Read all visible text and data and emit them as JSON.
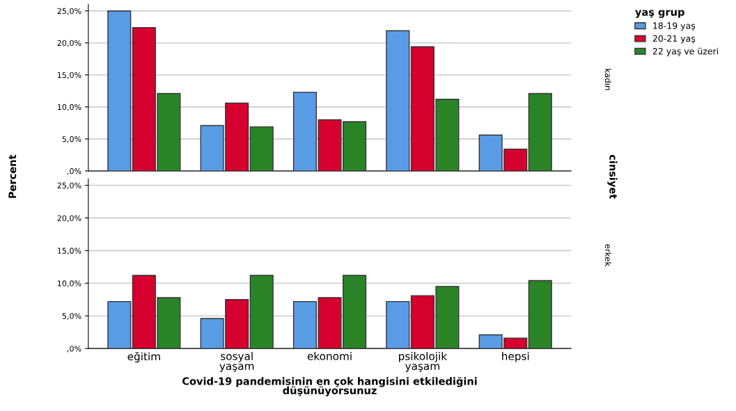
{
  "chart_data": [
    {
      "type": "bar",
      "ylabel": "Percent",
      "legend_title": "yaş grup",
      "legend": "right",
      "grid": "y",
      "tick_labels": "y",
      "categories": [
        null,
        null,
        null,
        null,
        null
      ],
      "series": [
        {
          "name": "18-19 yaş",
          "color": "#5a9be6",
          "values": [
            25.0,
            7.1,
            12.3,
            21.9,
            5.6
          ]
        },
        {
          "name": "20-21 yaş",
          "color": "#d6002f",
          "values": [
            22.4,
            10.6,
            8.0,
            19.4,
            3.4
          ]
        },
        {
          "name": "22 yaş ve üzeri",
          "color": "#2a8427",
          "values": [
            12.1,
            6.9,
            7.7,
            11.2,
            12.1
          ]
        }
      ],
      "ylim": [
        0,
        26
      ],
      "yticks": [
        {
          "value": 0,
          "label": ",0%"
        },
        {
          "value": 5,
          "label": "5,0%"
        },
        {
          "value": 10,
          "label": "10,0%"
        },
        {
          "value": 15,
          "label": "15,0%"
        },
        {
          "value": 20,
          "label": "20,0%"
        },
        {
          "value": 25,
          "label": "25,0%"
        }
      ],
      "annotations": [
        "kadın",
        "cinsiyet"
      ]
    },
    {
      "type": "bar",
      "xlabel": "Covid-19 pandemisinin en çok hangisini etkilediğini\ndüşünüyorsunuz",
      "grid": "y",
      "categories": [
        "eğitim",
        "sosyal\nyaşam",
        "ekonomi",
        "psikolojik\nyaşam",
        "hepsi"
      ],
      "series": [
        {
          "color": "#5a9be6",
          "values": [
            7.2,
            4.6,
            7.2,
            7.2,
            2.1
          ]
        },
        {
          "color": "#d6002f",
          "values": [
            11.2,
            7.5,
            7.8,
            8.1,
            1.6
          ]
        },
        {
          "color": "#2a8427",
          "values": [
            7.8,
            11.2,
            11.2,
            9.5,
            10.4
          ]
        }
      ],
      "ylim": [
        0,
        26
      ],
      "yticks": [
        {
          "value": 0,
          "label": ",0%"
        },
        {
          "value": 5,
          "label": "5,0%"
        },
        {
          "value": 10,
          "label": "10,0%"
        },
        {
          "value": 15,
          "label": "15,0%"
        },
        {
          "value": 20,
          "label": "20,0%"
        },
        {
          "value": 25,
          "label": "25,0%"
        }
      ],
      "annotations": [
        "erkek"
      ]
    }
  ]
}
